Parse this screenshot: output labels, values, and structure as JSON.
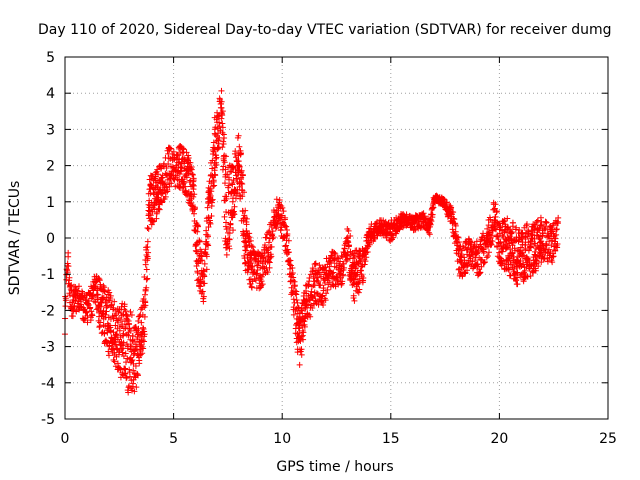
{
  "chart_data": {
    "type": "scatter",
    "title": "Day 110 of 2020, Sidereal Day-to-day VTEC variation (SDTVAR) for receiver dumg",
    "xlabel": "GPS time / hours",
    "ylabel": "SDTVAR / TECUs",
    "xlim": [
      0,
      25
    ],
    "ylim": [
      -5,
      5
    ],
    "xticks": [
      "0",
      "5",
      "10",
      "15",
      "20",
      "25"
    ],
    "yticks": [
      "-5",
      "-4",
      "-3",
      "-2",
      "-1",
      "0",
      "1",
      "2",
      "3",
      "4",
      "5"
    ],
    "grid": true,
    "marker": "+",
    "color": "#ff0000",
    "series": [
      {
        "name": "SDTVAR",
        "profile": [
          [
            0.0,
            -2.3,
            0.4
          ],
          [
            0.1,
            -0.5,
            0.4
          ],
          [
            0.3,
            -1.8,
            0.4
          ],
          [
            0.6,
            -1.6,
            0.4
          ],
          [
            1.0,
            -2.0,
            0.5
          ],
          [
            1.4,
            -1.5,
            0.5
          ],
          [
            1.8,
            -2.2,
            0.9
          ],
          [
            2.2,
            -2.5,
            0.9
          ],
          [
            2.6,
            -2.8,
            1.1
          ],
          [
            3.0,
            -3.2,
            1.2
          ],
          [
            3.3,
            -3.3,
            0.9
          ],
          [
            3.6,
            -2.5,
            0.9
          ],
          [
            3.9,
            1.0,
            0.7
          ],
          [
            4.2,
            1.2,
            0.7
          ],
          [
            4.5,
            1.5,
            0.6
          ],
          [
            4.8,
            2.0,
            0.6
          ],
          [
            5.2,
            2.0,
            0.6
          ],
          [
            5.6,
            1.8,
            0.7
          ],
          [
            5.9,
            1.3,
            0.6
          ],
          [
            6.1,
            -0.5,
            0.9
          ],
          [
            6.4,
            -1.3,
            0.5
          ],
          [
            6.6,
            0.5,
            0.8
          ],
          [
            6.9,
            2.5,
            0.9
          ],
          [
            7.2,
            3.6,
            0.5
          ],
          [
            7.4,
            0.8,
            1.5
          ],
          [
            7.7,
            1.0,
            1.0
          ],
          [
            8.0,
            2.3,
            0.8
          ],
          [
            8.3,
            0.0,
            0.9
          ],
          [
            8.6,
            -0.8,
            0.6
          ],
          [
            9.0,
            -0.9,
            0.5
          ],
          [
            9.4,
            -0.3,
            0.6
          ],
          [
            9.8,
            0.8,
            0.4
          ],
          [
            10.2,
            0.0,
            0.5
          ],
          [
            10.5,
            -1.5,
            0.5
          ],
          [
            10.8,
            -2.8,
            0.8
          ],
          [
            11.1,
            -1.9,
            0.6
          ],
          [
            11.5,
            -1.2,
            0.6
          ],
          [
            11.9,
            -1.3,
            0.6
          ],
          [
            12.3,
            -0.8,
            0.5
          ],
          [
            12.7,
            -1.0,
            0.4
          ],
          [
            13.0,
            -0.2,
            0.5
          ],
          [
            13.3,
            -1.0,
            0.8
          ],
          [
            13.7,
            -0.8,
            0.5
          ],
          [
            14.0,
            0.1,
            0.3
          ],
          [
            14.5,
            0.3,
            0.2
          ],
          [
            15.0,
            0.2,
            0.3
          ],
          [
            15.5,
            0.5,
            0.2
          ],
          [
            16.0,
            0.4,
            0.2
          ],
          [
            16.5,
            0.5,
            0.2
          ],
          [
            16.8,
            0.3,
            0.2
          ],
          [
            17.0,
            1.1,
            0.1
          ],
          [
            17.4,
            1.0,
            0.1
          ],
          [
            17.8,
            0.6,
            0.3
          ],
          [
            18.2,
            -0.7,
            0.5
          ],
          [
            18.6,
            -0.4,
            0.4
          ],
          [
            19.0,
            -0.6,
            0.5
          ],
          [
            19.5,
            0.0,
            0.5
          ],
          [
            19.8,
            0.6,
            0.5
          ],
          [
            20.0,
            -0.2,
            0.6
          ],
          [
            20.4,
            -0.2,
            0.8
          ],
          [
            20.8,
            -0.5,
            0.8
          ],
          [
            21.2,
            -0.4,
            0.8
          ],
          [
            21.6,
            -0.3,
            0.7
          ],
          [
            22.0,
            0.0,
            0.6
          ],
          [
            22.4,
            -0.2,
            0.5
          ],
          [
            22.7,
            0.2,
            0.4
          ]
        ]
      }
    ]
  }
}
